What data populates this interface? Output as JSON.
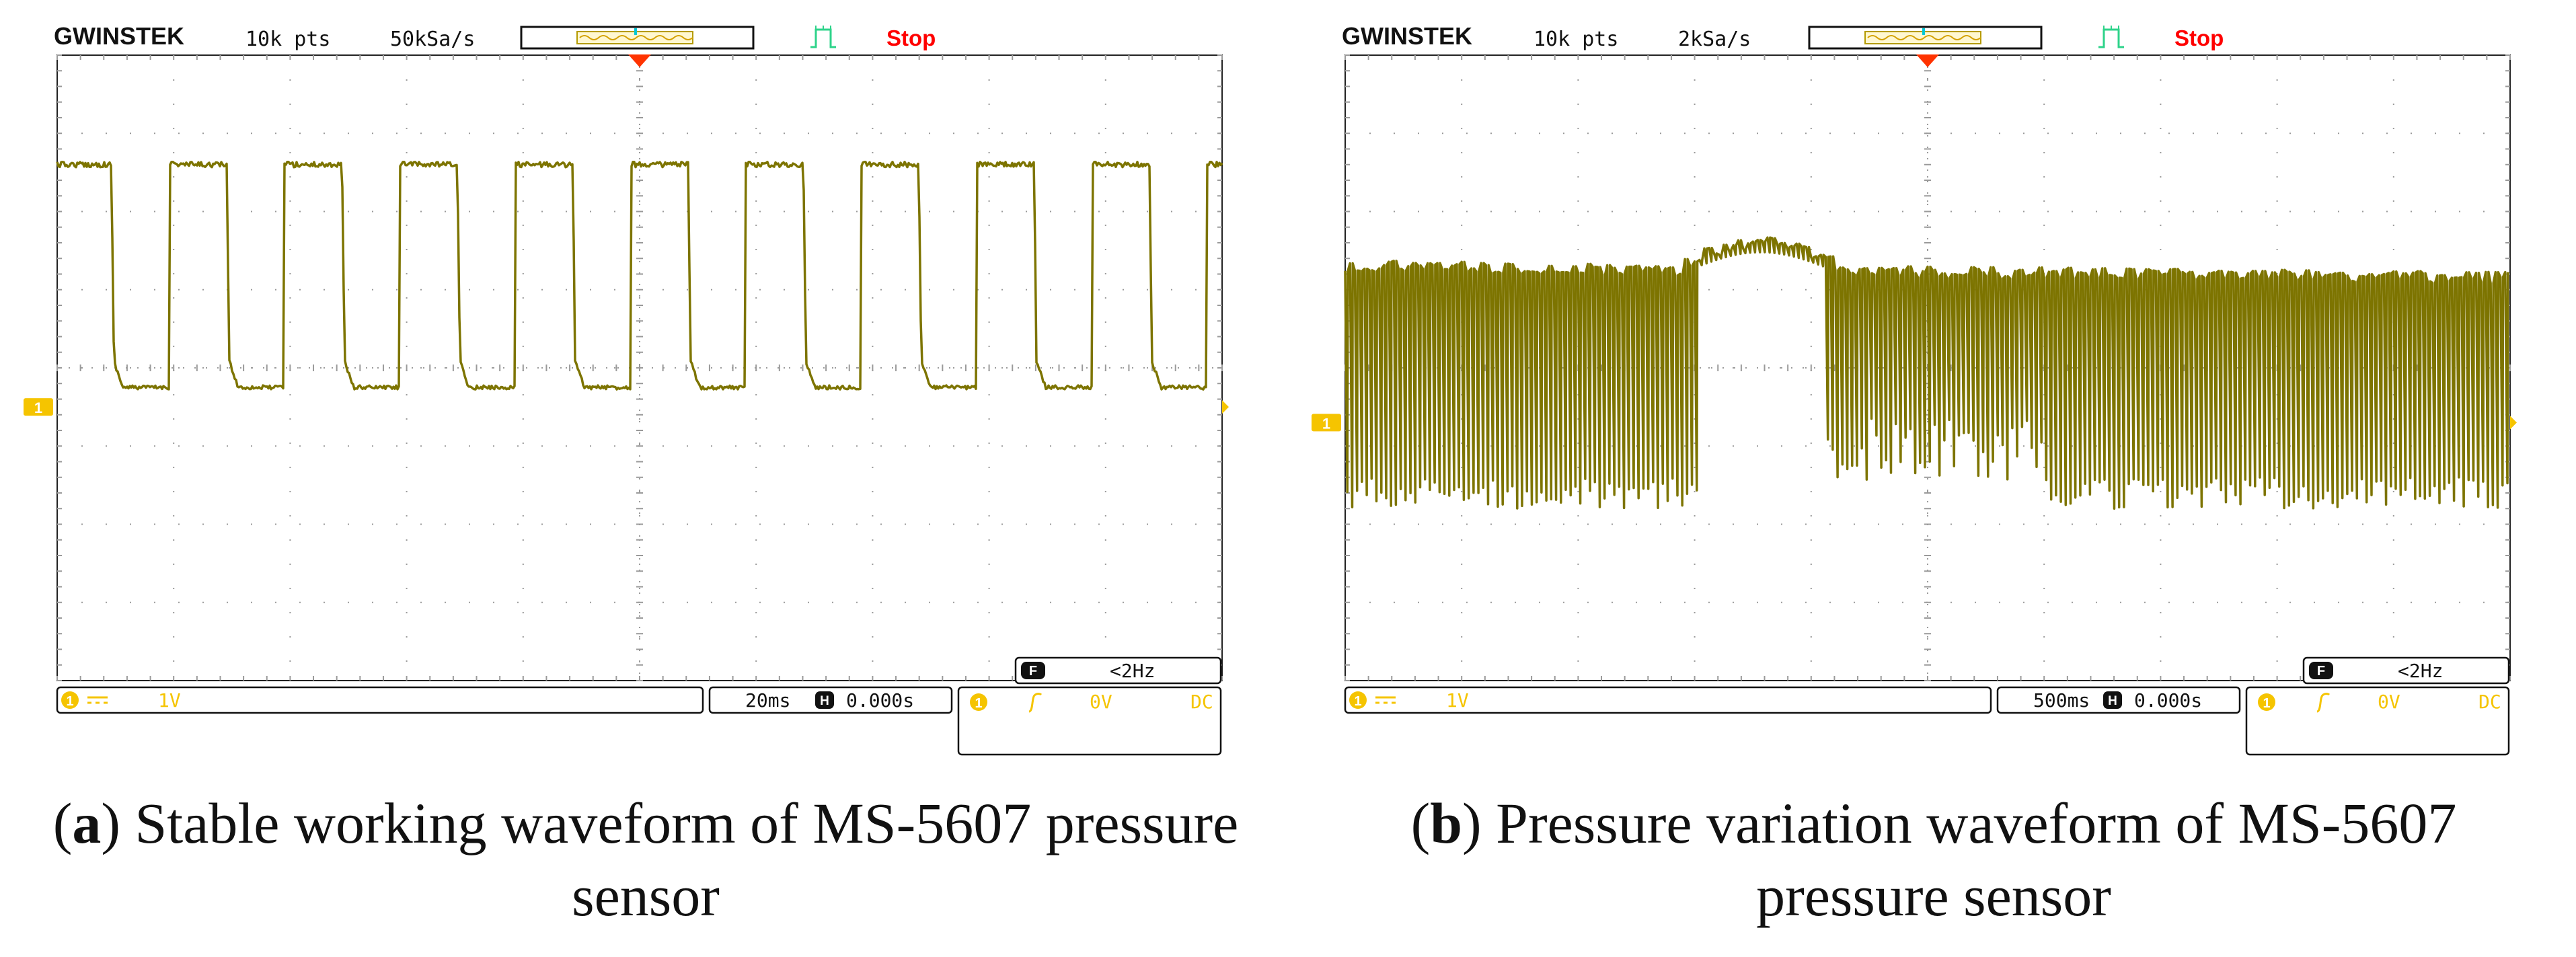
{
  "panels": [
    {
      "id": "a",
      "brand": "GWINSTEK",
      "record_length": "10k pts",
      "sample_rate": "50kSa/s",
      "state": "Stop",
      "trigger_freq": "<2Hz",
      "ch1_scale": "1V",
      "timebase": "20ms",
      "h_position": "0.000s",
      "trigger_level": "0V",
      "coupling": "DC",
      "caption_letter": "a",
      "caption_text": ") Stable working waveform of MS-5607 pressure sensor",
      "waveform": {
        "type": "square",
        "periods": 10.1,
        "phase": 0.03,
        "high": 2.6,
        "low": -0.25
      }
    },
    {
      "id": "b",
      "brand": "GWINSTEK",
      "record_length": "10k pts",
      "sample_rate": "2kSa/s",
      "state": "Stop",
      "trigger_freq": "<2Hz",
      "ch1_scale": "1V",
      "timebase": "500ms",
      "h_position": "0.000s",
      "trigger_level": "0V",
      "coupling": "DC",
      "caption_letter": "b",
      "caption_text": ") Pressure variation waveform of MS-5607 pressure sensor",
      "waveform": {
        "type": "dense",
        "cycles": 240
      }
    }
  ],
  "colors": {
    "trace": "#7d7400",
    "grid": "#9a9a9a",
    "marker": "#f5c400",
    "trigger_arrow": "#ff3300",
    "stop": "#ff0000",
    "trig_icon": "#2ed38a"
  }
}
